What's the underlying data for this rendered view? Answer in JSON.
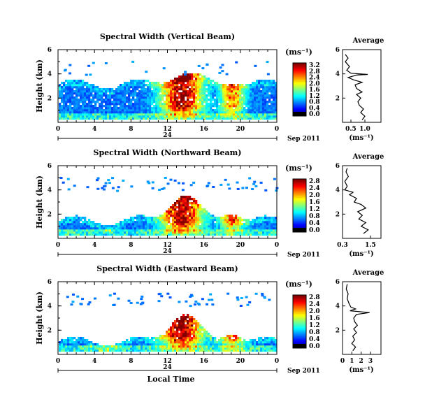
{
  "chart_data": [
    {
      "type": "heatmap",
      "title": "Spectral Width (Vertical Beam)",
      "ylabel": "Height (km)",
      "xlim": [
        0,
        24
      ],
      "ylim": [
        0,
        6
      ],
      "xticks": [
        "0",
        "4",
        "8",
        "12",
        "16",
        "20",
        "0"
      ],
      "yticks": [
        "2",
        "4",
        "6"
      ],
      "date_marker": "24",
      "date_label": "Sep 2011",
      "colorbar": {
        "unit": "(ms⁻¹)",
        "ticks": [
          "0.0",
          "0.4",
          "0.8",
          "1.2",
          "1.6",
          "2.0",
          "2.4",
          "2.8",
          "3.2"
        ],
        "range": [
          0,
          3.2
        ]
      },
      "cloud_base_km": 3.1,
      "convective_peak_km": 4.0,
      "profile": {
        "title": "Average",
        "xlabel": "(ms⁻¹)",
        "xticks": [
          "0.5",
          "1.0"
        ],
        "xlim": [
          0.2,
          1.2
        ],
        "yticks": [
          "2",
          "4",
          "6"
        ],
        "ylim": [
          0,
          6
        ],
        "points": [
          [
            0.9,
            0.2
          ],
          [
            1.0,
            0.5
          ],
          [
            0.85,
            0.8
          ],
          [
            0.95,
            1.1
          ],
          [
            0.8,
            1.4
          ],
          [
            0.75,
            1.7
          ],
          [
            0.85,
            2.0
          ],
          [
            0.7,
            2.3
          ],
          [
            0.9,
            2.5
          ],
          [
            0.7,
            2.8
          ],
          [
            0.65,
            3.1
          ],
          [
            0.9,
            3.3
          ],
          [
            0.6,
            3.5
          ],
          [
            0.4,
            3.7
          ],
          [
            0.7,
            3.9
          ],
          [
            1.1,
            3.95
          ],
          [
            0.5,
            4.05
          ],
          [
            0.35,
            4.3
          ],
          [
            0.45,
            4.6
          ],
          [
            0.3,
            5.0
          ],
          [
            0.4,
            5.3
          ],
          [
            0.3,
            5.6
          ]
        ]
      }
    },
    {
      "type": "heatmap",
      "title": "Spectral Width (Northward Beam)",
      "ylabel": "Height (km)",
      "xlim": [
        0,
        24
      ],
      "ylim": [
        0,
        6
      ],
      "xticks": [
        "0",
        "4",
        "8",
        "12",
        "16",
        "20",
        "0"
      ],
      "yticks": [
        "2",
        "4",
        "6"
      ],
      "date_marker": "24",
      "date_label": "Sep 2011",
      "colorbar": {
        "unit": "(ms⁻¹)",
        "ticks": [
          "0.0",
          "0.4",
          "0.8",
          "1.2",
          "1.6",
          "2.0",
          "2.4",
          "2.8"
        ],
        "range": [
          0,
          2.8
        ]
      },
      "cloud_base_km": 1.4,
      "convective_peak_km": 3.6,
      "profile": {
        "title": "Average",
        "xlabel": "(ms⁻¹)",
        "xticks": [
          "0.3",
          "1.5"
        ],
        "xlim": [
          0.3,
          1.5
        ],
        "yticks": [
          "2",
          "4",
          "6"
        ],
        "ylim": [
          0,
          6
        ],
        "points": [
          [
            1.2,
            0.4
          ],
          [
            1.4,
            0.7
          ],
          [
            1.1,
            1.0
          ],
          [
            1.3,
            1.3
          ],
          [
            1.0,
            1.6
          ],
          [
            1.15,
            1.9
          ],
          [
            0.95,
            2.2
          ],
          [
            1.3,
            2.5
          ],
          [
            1.1,
            2.8
          ],
          [
            0.8,
            3.0
          ],
          [
            0.9,
            3.3
          ],
          [
            0.6,
            3.6
          ],
          [
            0.75,
            3.8
          ],
          [
            0.4,
            4.0
          ],
          [
            0.5,
            4.3
          ],
          [
            0.4,
            4.7
          ],
          [
            0.55,
            5.1
          ],
          [
            0.45,
            5.5
          ],
          [
            0.5,
            5.8
          ]
        ]
      }
    },
    {
      "type": "heatmap",
      "title": "Spectral Width (Eastward Beam)",
      "ylabel": "Height (km)",
      "xlim": [
        0,
        24
      ],
      "ylim": [
        0,
        6
      ],
      "xticks": [
        "0",
        "4",
        "8",
        "12",
        "16",
        "20",
        "0"
      ],
      "yticks": [
        "2",
        "4",
        "6"
      ],
      "date_marker": "24",
      "date_label": "Sep 2011",
      "xlabel": "Local Time",
      "colorbar": {
        "unit": "(ms⁻¹)",
        "ticks": [
          "0.0",
          "0.4",
          "0.8",
          "1.2",
          "1.6",
          "2.0",
          "2.4",
          "2.8"
        ],
        "range": [
          0,
          2.8
        ]
      },
      "cloud_base_km": 1.0,
      "convective_peak_km": 3.3,
      "profile": {
        "title": "Average",
        "xlabel": "(ms⁻¹)",
        "xticks": [
          "0",
          "1",
          "2",
          "3"
        ],
        "xlim": [
          0,
          3
        ],
        "yticks": [
          "2",
          "4",
          "6"
        ],
        "ylim": [
          0,
          6
        ],
        "points": [
          [
            1.1,
            0.3
          ],
          [
            1.4,
            0.6
          ],
          [
            1.0,
            0.9
          ],
          [
            1.3,
            1.2
          ],
          [
            1.1,
            1.5
          ],
          [
            1.5,
            1.8
          ],
          [
            1.2,
            2.1
          ],
          [
            1.6,
            2.4
          ],
          [
            1.3,
            2.7
          ],
          [
            1.2,
            3.0
          ],
          [
            1.5,
            3.3
          ],
          [
            2.9,
            3.45
          ],
          [
            0.8,
            3.6
          ],
          [
            1.4,
            3.75
          ],
          [
            0.9,
            3.9
          ],
          [
            0.7,
            4.2
          ],
          [
            0.5,
            4.6
          ],
          [
            0.6,
            5.0
          ],
          [
            0.4,
            5.4
          ],
          [
            0.5,
            5.8
          ]
        ]
      }
    }
  ]
}
